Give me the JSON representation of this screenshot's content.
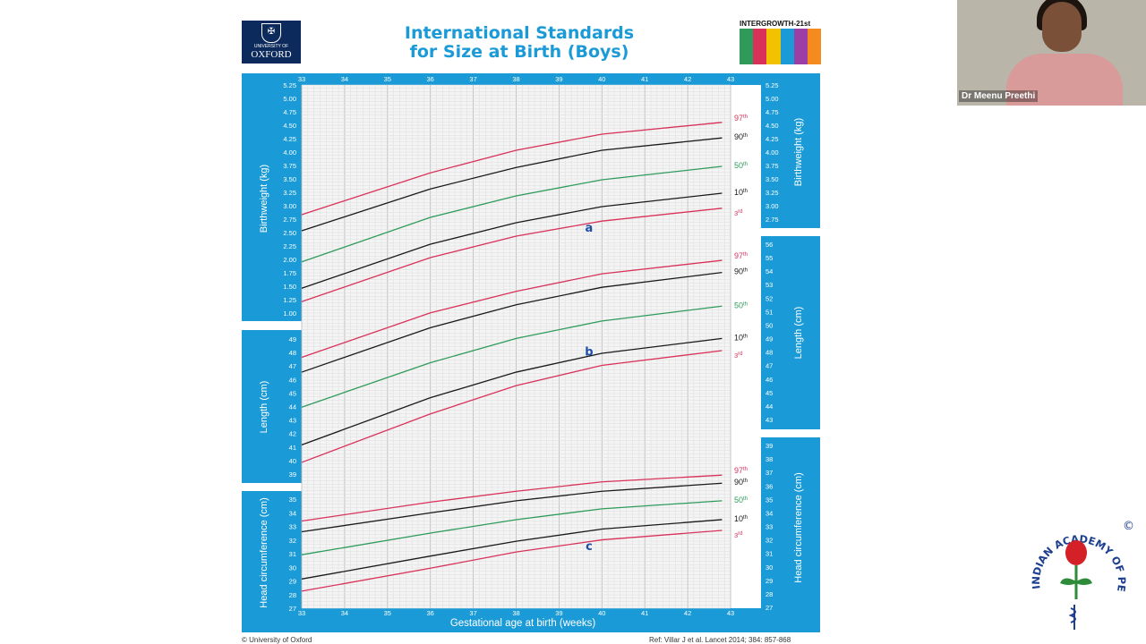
{
  "header": {
    "title_line1": "International Standards",
    "title_line2": "for Size at Birth (Boys)",
    "oxford_small": "UNIVERSITY OF",
    "oxford_big": "OXFORD",
    "intergrowth": "INTERGROWTH-21st"
  },
  "video": {
    "participant_name": "Dr Meenu Preethi"
  },
  "footer": {
    "copyright": "© University of Oxford",
    "reference": "Ref: Villar J et al. Lancet 2014; 384: 857-868"
  },
  "logo": {
    "text": "INDIAN ACADEMY OF PEDIATRICS",
    "mark": "©"
  },
  "colors": {
    "panel_blue": "#1a9ad6",
    "red": "#d8325a",
    "black": "#1a1a1a",
    "green": "#2e9b5b",
    "annotation": "#1d4ea8"
  },
  "chart_data": {
    "type": "line",
    "xlabel": "Gestational age at birth (weeks)",
    "x_ticks": [
      33,
      34,
      35,
      36,
      37,
      38,
      39,
      40,
      41,
      42,
      43
    ],
    "xlim": [
      33,
      43
    ],
    "panels": [
      {
        "name": "weight",
        "ylabel": "Birthweight (kg)",
        "y_ticks": [
          "1.00",
          "1.25",
          "1.50",
          "1.75",
          "2.00",
          "2.25",
          "2.50",
          "2.75",
          "3.00",
          "3.25",
          "3.50",
          "3.75",
          "4.00",
          "4.25",
          "4.50",
          "4.75",
          "5.00",
          "5.25"
        ],
        "right_ticks": [
          "2.75",
          "3.00",
          "3.25",
          "3.50",
          "3.75",
          "4.00",
          "4.25",
          "4.50",
          "4.75",
          "5.00",
          "5.25"
        ],
        "series": [
          {
            "name": "97th",
            "x": [
              33,
              36,
              38,
              40,
              42.8
            ],
            "y": [
              2.8,
              3.58,
              4.0,
              4.3,
              4.52
            ]
          },
          {
            "name": "90th",
            "x": [
              33,
              36,
              38,
              40,
              42.8
            ],
            "y": [
              2.5,
              3.28,
              3.68,
              4.0,
              4.23
            ]
          },
          {
            "name": "50th",
            "x": [
              33,
              36,
              38,
              40,
              42.8
            ],
            "y": [
              1.92,
              2.75,
              3.15,
              3.45,
              3.7
            ]
          },
          {
            "name": "10th",
            "x": [
              33,
              36,
              38,
              40,
              42.8
            ],
            "y": [
              1.43,
              2.25,
              2.65,
              2.95,
              3.2
            ]
          },
          {
            "name": "3rd",
            "x": [
              33,
              36,
              38,
              40,
              42.8
            ],
            "y": [
              1.18,
              2.0,
              2.4,
              2.68,
              2.92
            ]
          }
        ],
        "annotation": {
          "label": "a",
          "x": 39.7,
          "y": 2.55
        }
      },
      {
        "name": "length",
        "ylabel": "Length (cm)",
        "y_ticks": [
          "39",
          "40",
          "41",
          "42",
          "43",
          "44",
          "45",
          "46",
          "47",
          "48",
          "49"
        ],
        "right_ticks": [
          "43",
          "44",
          "45",
          "46",
          "47",
          "48",
          "49",
          "50",
          "51",
          "52",
          "53",
          "54",
          "55",
          "56"
        ],
        "series": [
          {
            "name": "97th",
            "x": [
              33,
              36,
              38,
              40,
              42.8
            ],
            "y": [
              47.6,
              50.9,
              52.5,
              53.8,
              54.8
            ]
          },
          {
            "name": "90th",
            "x": [
              33,
              36,
              38,
              40,
              42.8
            ],
            "y": [
              46.5,
              49.8,
              51.5,
              52.8,
              53.9
            ]
          },
          {
            "name": "50th",
            "x": [
              33,
              36,
              38,
              40,
              42.8
            ],
            "y": [
              43.9,
              47.2,
              49.0,
              50.3,
              51.4
            ]
          },
          {
            "name": "10th",
            "x": [
              33,
              36,
              38,
              40,
              42.8
            ],
            "y": [
              41.1,
              44.6,
              46.5,
              47.9,
              49.0
            ]
          },
          {
            "name": "3rd",
            "x": [
              33,
              36,
              38,
              40,
              42.8
            ],
            "y": [
              39.8,
              43.4,
              45.5,
              47.0,
              48.1
            ]
          }
        ],
        "annotation": {
          "label": "b",
          "x": 39.7,
          "y": 48.0
        }
      },
      {
        "name": "head",
        "ylabel": "Head circumference (cm)",
        "y_ticks": [
          "27",
          "28",
          "29",
          "30",
          "31",
          "32",
          "33",
          "34",
          "35"
        ],
        "right_ticks": [
          "27",
          "28",
          "29",
          "30",
          "31",
          "32",
          "33",
          "34",
          "35",
          "36",
          "37",
          "38",
          "39"
        ],
        "series": [
          {
            "name": "97th",
            "x": [
              33,
              36,
              38,
              40,
              42.8
            ],
            "y": [
              33.4,
              34.8,
              35.6,
              36.3,
              36.8
            ]
          },
          {
            "name": "90th",
            "x": [
              33,
              36,
              38,
              40,
              42.8
            ],
            "y": [
              32.6,
              34.0,
              34.9,
              35.6,
              36.2
            ]
          },
          {
            "name": "50th",
            "x": [
              33,
              36,
              38,
              40,
              42.8
            ],
            "y": [
              30.9,
              32.5,
              33.5,
              34.3,
              34.9
            ]
          },
          {
            "name": "10th",
            "x": [
              33,
              36,
              38,
              40,
              42.8
            ],
            "y": [
              29.1,
              30.8,
              31.9,
              32.8,
              33.5
            ]
          },
          {
            "name": "3rd",
            "x": [
              33,
              36,
              38,
              40,
              42.8
            ],
            "y": [
              28.2,
              29.9,
              31.1,
              32.0,
              32.7
            ]
          }
        ],
        "annotation": {
          "label": "c",
          "x": 39.7,
          "y": 31.5
        }
      }
    ],
    "percentile_labels": [
      {
        "num": "97",
        "suf": "th"
      },
      {
        "num": "90",
        "suf": "th"
      },
      {
        "num": "50",
        "suf": "th"
      },
      {
        "num": "10",
        "suf": "th"
      },
      {
        "num": "3",
        "suf": "rd"
      }
    ]
  }
}
